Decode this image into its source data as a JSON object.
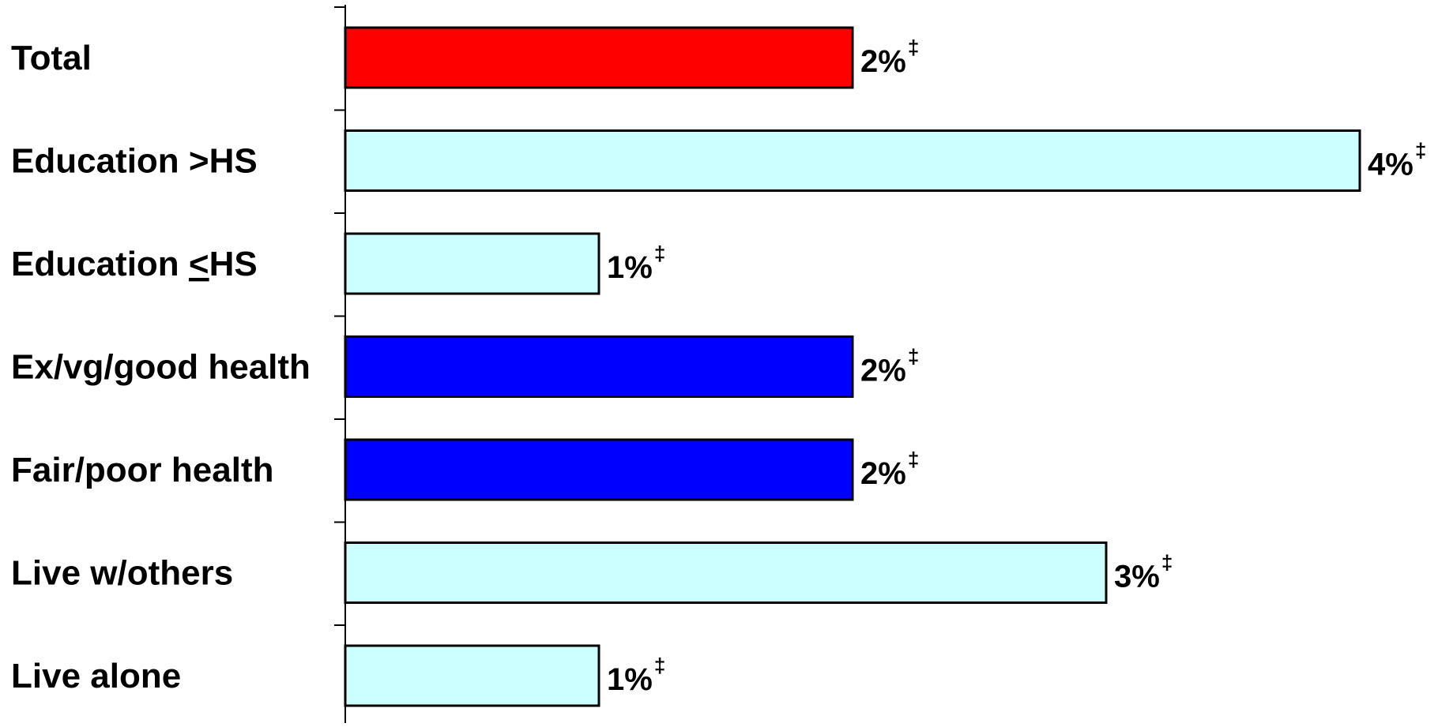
{
  "chart_data": {
    "type": "bar",
    "orientation": "horizontal",
    "categories": [
      {
        "pre": "Total",
        "ul": "",
        "post": ""
      },
      {
        "pre": "Education >HS",
        "ul": "",
        "post": ""
      },
      {
        "pre": "Education ",
        "ul": "<",
        "post": "HS"
      },
      {
        "pre": "Ex/vg/good health",
        "ul": "",
        "post": ""
      },
      {
        "pre": "Fair/poor health",
        "ul": "",
        "post": ""
      },
      {
        "pre": "Live w/others",
        "ul": "",
        "post": ""
      },
      {
        "pre": "Live alone",
        "ul": "",
        "post": ""
      }
    ],
    "values": [
      2,
      4,
      1,
      2,
      2,
      3,
      1
    ],
    "data_labels": [
      "2%",
      "4%",
      "1%",
      "2%",
      "2%",
      "3%",
      "1%"
    ],
    "label_marker": "‡",
    "bar_colors": [
      "#ff0000",
      "#ccffff",
      "#ccffff",
      "#0000ff",
      "#0000ff",
      "#ccffff",
      "#ccffff"
    ],
    "xlim": [
      0,
      4
    ],
    "grid": false,
    "legend": "none",
    "title": "",
    "xlabel": "",
    "ylabel": ""
  }
}
